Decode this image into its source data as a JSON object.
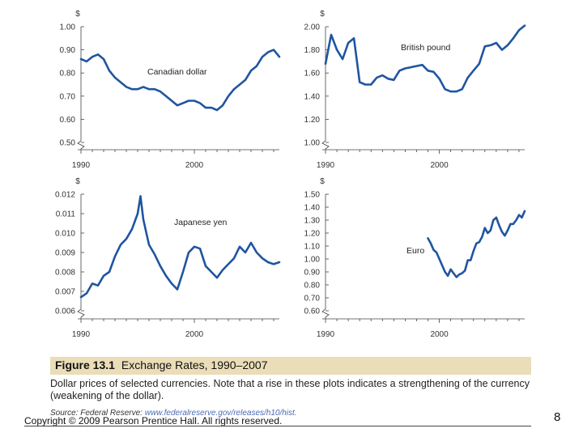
{
  "chart_data": [
    {
      "type": "line",
      "title": "Canadian dollar",
      "unit": "$",
      "x_range": [
        1990,
        2007.5
      ],
      "ylim": [
        0.5,
        1.0
      ],
      "y_ticks": [
        "1.00",
        "0.90",
        "0.80",
        "0.70",
        "0.60",
        "0.50"
      ],
      "x_ticks": [
        "1990",
        "2000"
      ],
      "x": [
        1990,
        1990.5,
        1991,
        1991.5,
        1992,
        1992.5,
        1993,
        1993.5,
        1994,
        1994.5,
        1995,
        1995.5,
        1996,
        1996.5,
        1997,
        1997.5,
        1998,
        1998.5,
        1999,
        1999.5,
        2000,
        2000.5,
        2001,
        2001.5,
        2002,
        2002.5,
        2003,
        2003.5,
        2004,
        2004.5,
        2005,
        2005.5,
        2006,
        2006.5,
        2007,
        2007.5
      ],
      "values": [
        0.86,
        0.85,
        0.87,
        0.88,
        0.86,
        0.81,
        0.78,
        0.76,
        0.74,
        0.73,
        0.73,
        0.74,
        0.73,
        0.73,
        0.72,
        0.7,
        0.68,
        0.66,
        0.67,
        0.68,
        0.68,
        0.67,
        0.65,
        0.65,
        0.64,
        0.66,
        0.7,
        0.73,
        0.75,
        0.77,
        0.81,
        0.83,
        0.87,
        0.89,
        0.9,
        0.87
      ]
    },
    {
      "type": "line",
      "title": "British pound",
      "unit": "$",
      "x_range": [
        1990,
        2007.5
      ],
      "ylim": [
        1.0,
        2.0
      ],
      "y_ticks": [
        "2.00",
        "1.80",
        "1.60",
        "1.40",
        "1.20",
        "1.00"
      ],
      "x_ticks": [
        "1990",
        "2000"
      ],
      "x": [
        1990,
        1990.5,
        1991,
        1991.5,
        1992,
        1992.5,
        1993,
        1993.5,
        1994,
        1994.5,
        1995,
        1995.5,
        1996,
        1996.5,
        1997,
        1997.5,
        1998,
        1998.5,
        1999,
        1999.5,
        2000,
        2000.5,
        2001,
        2001.5,
        2002,
        2002.5,
        2003,
        2003.5,
        2004,
        2004.5,
        2005,
        2005.5,
        2006,
        2006.5,
        2007,
        2007.5
      ],
      "values": [
        1.68,
        1.93,
        1.8,
        1.72,
        1.86,
        1.9,
        1.52,
        1.5,
        1.5,
        1.56,
        1.58,
        1.55,
        1.54,
        1.62,
        1.64,
        1.65,
        1.66,
        1.67,
        1.62,
        1.61,
        1.55,
        1.46,
        1.44,
        1.44,
        1.46,
        1.56,
        1.62,
        1.68,
        1.83,
        1.84,
        1.86,
        1.8,
        1.84,
        1.9,
        1.97,
        2.01
      ]
    },
    {
      "type": "line",
      "title": "Japanese yen",
      "unit": "$",
      "x_range": [
        1990,
        2007.5
      ],
      "ylim": [
        0.006,
        0.012
      ],
      "y_ticks": [
        "0.012",
        "0.011",
        "0.010",
        "0.009",
        "0.008",
        "0.007",
        "0.006"
      ],
      "x_ticks": [
        "1990",
        "2000"
      ],
      "x": [
        1990,
        1990.5,
        1991,
        1991.5,
        1992,
        1992.5,
        1993,
        1993.5,
        1994,
        1994.5,
        1995,
        1995.25,
        1995.5,
        1996,
        1996.5,
        1997,
        1997.5,
        1998,
        1998.5,
        1999,
        1999.5,
        2000,
        2000.5,
        2001,
        2001.5,
        2002,
        2002.5,
        2003,
        2003.5,
        2004,
        2004.5,
        2005,
        2005.5,
        2006,
        2006.5,
        2007,
        2007.5
      ],
      "values": [
        0.0067,
        0.0069,
        0.0074,
        0.0073,
        0.0078,
        0.008,
        0.0088,
        0.0094,
        0.0097,
        0.0102,
        0.011,
        0.0119,
        0.0107,
        0.0094,
        0.0089,
        0.0083,
        0.0078,
        0.0074,
        0.0071,
        0.008,
        0.009,
        0.0093,
        0.0092,
        0.0083,
        0.008,
        0.0077,
        0.0081,
        0.0084,
        0.0087,
        0.0093,
        0.009,
        0.0095,
        0.009,
        0.0087,
        0.0085,
        0.0084,
        0.0085
      ]
    },
    {
      "type": "line",
      "title": "Euro",
      "unit": "$",
      "x_range": [
        1990,
        2007.5
      ],
      "ylim": [
        0.6,
        1.5
      ],
      "y_ticks": [
        "1.50",
        "1.40",
        "1.30",
        "1.20",
        "1.10",
        "1.00",
        "0.90",
        "0.80",
        "0.70",
        "0.60"
      ],
      "x_ticks": [
        "1990",
        "2000"
      ],
      "x": [
        1999,
        1999.25,
        1999.5,
        1999.75,
        2000,
        2000.25,
        2000.5,
        2000.75,
        2001,
        2001.25,
        2001.5,
        2001.75,
        2002,
        2002.25,
        2002.5,
        2002.75,
        2003,
        2003.25,
        2003.5,
        2003.75,
        2004,
        2004.25,
        2004.5,
        2004.75,
        2005,
        2005.25,
        2005.5,
        2005.75,
        2006,
        2006.25,
        2006.5,
        2006.75,
        2007,
        2007.25,
        2007.5
      ],
      "values": [
        1.16,
        1.12,
        1.07,
        1.05,
        1.0,
        0.95,
        0.9,
        0.87,
        0.92,
        0.89,
        0.86,
        0.88,
        0.89,
        0.91,
        0.99,
        0.99,
        1.06,
        1.12,
        1.13,
        1.17,
        1.24,
        1.2,
        1.22,
        1.3,
        1.32,
        1.26,
        1.21,
        1.18,
        1.22,
        1.27,
        1.27,
        1.3,
        1.34,
        1.32,
        1.37
      ]
    }
  ],
  "figure": {
    "label": "Figure 13.1",
    "title": "Exchange Rates, 1990–2007",
    "caption": "Dollar prices of selected currencies. Note that a rise in these plots indicates a strengthening of the currency (weakening of the dollar).",
    "source_label": "Source: Federal Reserve: ",
    "source_url": "www.federalreserve.gov/releases/h10/hist."
  },
  "copyright": "Copyright © 2009 Pearson Prentice Hall. All rights reserved.",
  "page_number": "8",
  "colors": {
    "line": "#1f55a0",
    "caption_bar": "#eaddb8"
  }
}
